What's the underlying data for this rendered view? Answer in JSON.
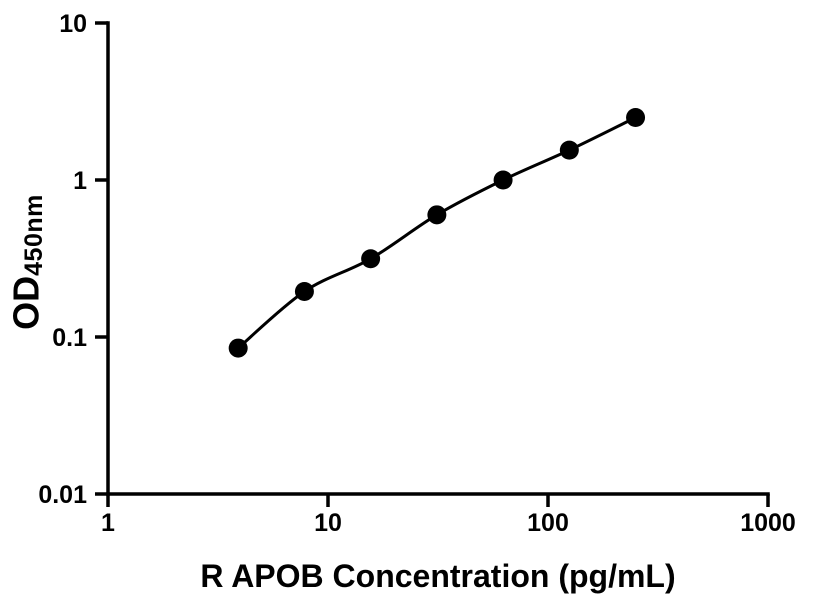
{
  "figure": {
    "background": "#ffffff",
    "foreground": "#000000"
  },
  "chart_data": {
    "type": "scatter",
    "subtype": "line-with-markers",
    "xlabel": "R APOB Concentration (pg/mL)",
    "ylabel_main": "OD",
    "ylabel_sub": "450nm",
    "x_scale": "log10",
    "y_scale": "log10",
    "xlim": [
      1,
      1000
    ],
    "ylim": [
      0.01,
      10
    ],
    "grid": false,
    "legend": "none",
    "x_ticks": [
      {
        "value": 1,
        "label": "1"
      },
      {
        "value": 10,
        "label": "10"
      },
      {
        "value": 100,
        "label": "100"
      },
      {
        "value": 1000,
        "label": "1000"
      }
    ],
    "y_ticks": [
      {
        "value": 10,
        "label": "10"
      },
      {
        "value": 1,
        "label": "1"
      },
      {
        "value": 0.1,
        "label": "0.1"
      },
      {
        "value": 0.01,
        "label": "0.01"
      }
    ],
    "series": [
      {
        "marker": "circle",
        "marker_color": "#000000",
        "line_color": "#000000",
        "points": [
          {
            "x": 3.906,
            "y": 0.085
          },
          {
            "x": 7.813,
            "y": 0.195
          },
          {
            "x": 15.625,
            "y": 0.315
          },
          {
            "x": 31.25,
            "y": 0.6
          },
          {
            "x": 62.5,
            "y": 1.0
          },
          {
            "x": 125,
            "y": 1.55
          },
          {
            "x": 250,
            "y": 2.5
          }
        ]
      }
    ]
  }
}
